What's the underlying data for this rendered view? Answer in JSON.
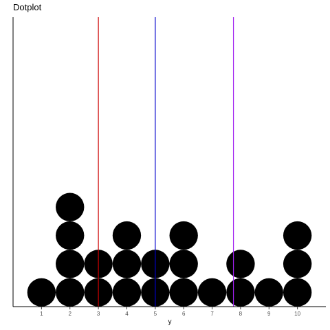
{
  "chart_data": {
    "type": "dotplot",
    "title": "Dotplot",
    "xlabel": "y",
    "ylabel": "",
    "xlim": [
      0.0,
      11.0
    ],
    "x_ticks": [
      1,
      2,
      3,
      4,
      5,
      6,
      7,
      8,
      9,
      10
    ],
    "y_ticks_shown": false,
    "grid": false,
    "dot_color": "#000000",
    "counts": [
      {
        "x": 1,
        "count": 1
      },
      {
        "x": 2,
        "count": 4
      },
      {
        "x": 3,
        "count": 2
      },
      {
        "x": 4,
        "count": 3
      },
      {
        "x": 5,
        "count": 2
      },
      {
        "x": 6,
        "count": 3
      },
      {
        "x": 7,
        "count": 1
      },
      {
        "x": 8,
        "count": 2
      },
      {
        "x": 9,
        "count": 1
      },
      {
        "x": 10,
        "count": 3
      }
    ],
    "vlines": [
      {
        "x": 3.0,
        "color": "#cc0000"
      },
      {
        "x": 5.0,
        "color": "#0000cc"
      },
      {
        "x": 7.75,
        "color": "#a020f0"
      }
    ]
  }
}
